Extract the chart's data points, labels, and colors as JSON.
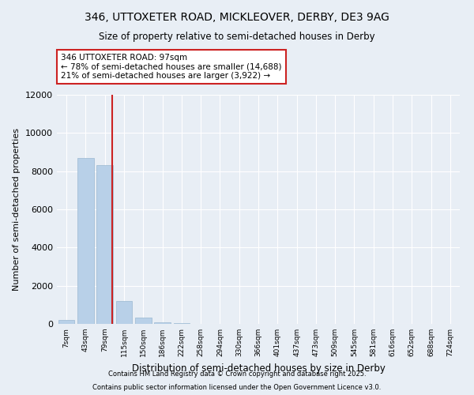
{
  "title": "346, UTTOXETER ROAD, MICKLEOVER, DERBY, DE3 9AG",
  "subtitle": "Size of property relative to semi-detached houses in Derby",
  "xlabel": "Distribution of semi-detached houses by size in Derby",
  "ylabel": "Number of semi-detached properties",
  "categories": [
    "7sqm",
    "43sqm",
    "79sqm",
    "115sqm",
    "150sqm",
    "186sqm",
    "222sqm",
    "258sqm",
    "294sqm",
    "330sqm",
    "366sqm",
    "401sqm",
    "437sqm",
    "473sqm",
    "509sqm",
    "545sqm",
    "581sqm",
    "616sqm",
    "652sqm",
    "688sqm",
    "724sqm"
  ],
  "values": [
    200,
    8700,
    8300,
    1200,
    350,
    100,
    50,
    8,
    2,
    1,
    0,
    0,
    0,
    0,
    0,
    0,
    0,
    0,
    0,
    0,
    0
  ],
  "bar_color": "#b8d0e8",
  "bar_edge_color": "#9ab8d0",
  "vline_x": 2.4,
  "vline_color": "#cc2222",
  "annotation_text": "346 UTTOXETER ROAD: 97sqm\n← 78% of semi-detached houses are smaller (14,688)\n21% of semi-detached houses are larger (3,922) →",
  "annotation_box_color": "white",
  "annotation_box_edge": "#cc2222",
  "ylim": [
    0,
    12000
  ],
  "yticks": [
    0,
    2000,
    4000,
    6000,
    8000,
    10000,
    12000
  ],
  "background_color": "#e8eef5",
  "footer1": "Contains HM Land Registry data © Crown copyright and database right 2025.",
  "footer2": "Contains public sector information licensed under the Open Government Licence v3.0."
}
